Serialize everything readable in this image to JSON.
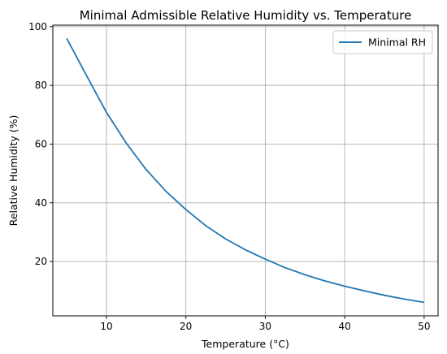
{
  "chart_data": {
    "type": "line",
    "title": "Minimal Admissible Relative Humidity vs. Temperature",
    "xlabel": "Temperature (°C)",
    "ylabel": "Relative Humidity (%)",
    "xlim": [
      3.25,
      51.75
    ],
    "ylim": [
      1.5,
      100.5
    ],
    "xticks": [
      10,
      20,
      30,
      40,
      50
    ],
    "yticks": [
      20,
      40,
      60,
      80,
      100
    ],
    "grid": true,
    "legend_position": "top-right",
    "series": [
      {
        "name": "Minimal RH",
        "color": "#1f77b4",
        "x": [
          5,
          7.5,
          10,
          12.5,
          15,
          17.5,
          20,
          22.5,
          25,
          27.5,
          30,
          32.5,
          35,
          37.5,
          40,
          42.5,
          45,
          47.5,
          50
        ],
        "y": [
          96,
          83.3,
          70.8,
          60.3,
          51.3,
          43.9,
          37.7,
          32.2,
          27.7,
          24,
          20.8,
          17.9,
          15.5,
          13.4,
          11.6,
          10,
          8.5,
          7.2,
          6.1
        ]
      }
    ]
  }
}
